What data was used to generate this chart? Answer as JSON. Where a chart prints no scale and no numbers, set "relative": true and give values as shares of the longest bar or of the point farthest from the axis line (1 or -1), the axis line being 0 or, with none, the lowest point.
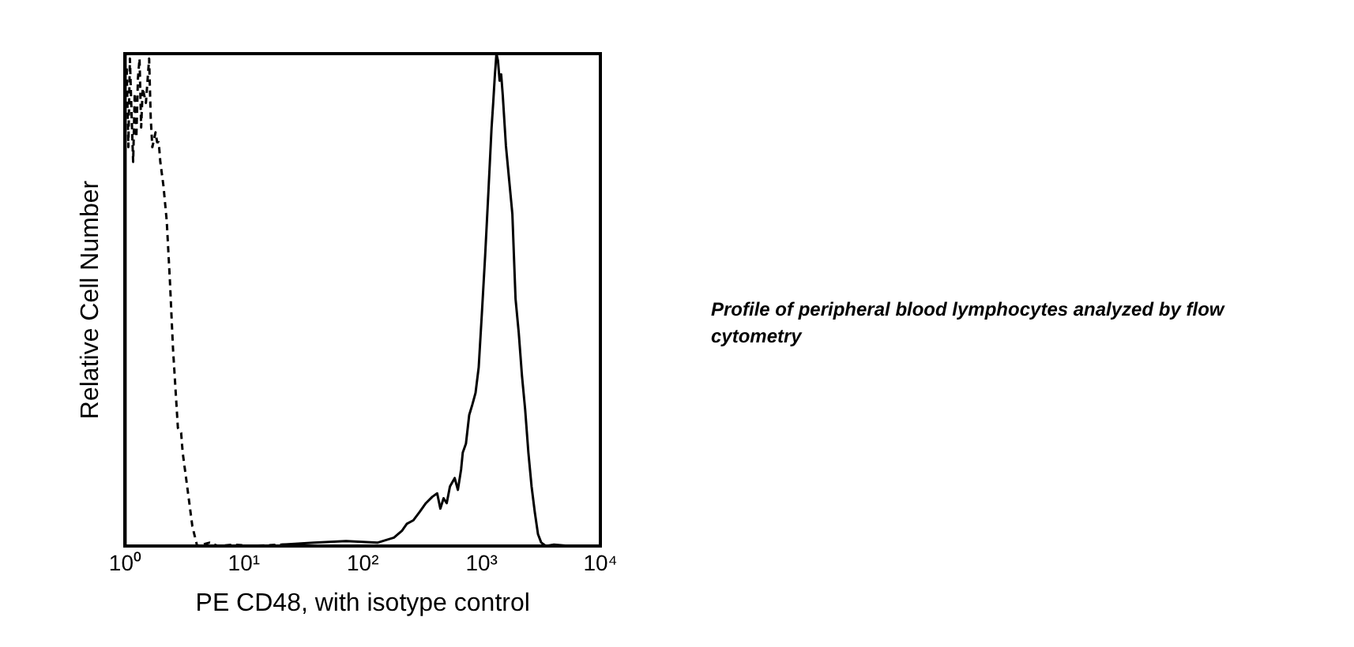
{
  "chart_data": {
    "type": "line",
    "xlabel": "PE CD48, with isotype control",
    "ylabel": "Relative Cell Number",
    "annotations": [
      "Profile of peripheral blood lymphocytes analyzed by flow cytometry"
    ],
    "log": "x",
    "relative": true,
    "grid": false,
    "legend": false,
    "marker": "none",
    "xlim": [
      1,
      10000
    ],
    "xticks": [
      {
        "value": 1,
        "label": "10⁰"
      },
      {
        "value": 10,
        "label": "10¹"
      },
      {
        "value": 100,
        "label": "10²"
      },
      {
        "value": 1000,
        "label": "10³"
      },
      {
        "value": 10000,
        "label": "10⁴"
      }
    ],
    "series": [
      {
        "color": "#000000",
        "line_style": "solid",
        "x": [
          20.9,
          38.8,
          72.3,
          134,
          183,
          214,
          235,
          266,
          301,
          340,
          385,
          423,
          450,
          479,
          509,
          542,
          594,
          632,
          673,
          695,
          739,
          787,
          836,
          890,
          946,
          1007,
          1071,
          1140,
          1213,
          1253,
          1291,
          1334,
          1374,
          1419,
          1462,
          1507,
          1603,
          1706,
          1816,
          1932,
          2056,
          2188,
          2328,
          2477,
          2636,
          2805,
          2985,
          3177,
          3483,
          4064,
          5546,
          10000
        ],
        "values": [
          0.003,
          0.007,
          0.01,
          0.007,
          0.017,
          0.031,
          0.045,
          0.052,
          0.069,
          0.087,
          0.1,
          0.107,
          0.076,
          0.097,
          0.087,
          0.121,
          0.138,
          0.114,
          0.156,
          0.19,
          0.208,
          0.266,
          0.287,
          0.311,
          0.363,
          0.474,
          0.588,
          0.716,
          0.848,
          0.9,
          0.952,
          1,
          0.986,
          0.945,
          0.958,
          0.917,
          0.813,
          0.744,
          0.675,
          0.502,
          0.433,
          0.346,
          0.277,
          0.19,
          0.121,
          0.069,
          0.024,
          0.007,
          0,
          0.003,
          0,
          0
        ]
      },
      {
        "color": "#000000",
        "line_style": "dashed",
        "x": [
          1.031,
          1.064,
          1.097,
          1.132,
          1.168,
          1.205,
          1.243,
          1.282,
          1.322,
          1.364,
          1.406,
          1.496,
          1.592,
          1.642,
          1.694,
          1.802,
          1.859,
          1.918,
          1.978,
          2.105,
          2.24,
          2.38,
          2.53,
          2.7,
          2.78,
          2.96,
          3.05,
          3.25,
          3.46,
          3.68,
          4.04,
          5.17,
          6.04,
          8.23,
          11.2,
          20.9,
          38.9,
          72.3
        ],
        "values": [
          0.97,
          0.81,
          0.99,
          0.88,
          0.78,
          0.92,
          0.83,
          0.95,
          0.99,
          0.85,
          0.93,
          0.9,
          0.99,
          0.87,
          0.81,
          0.84,
          0.82,
          0.82,
          0.78,
          0.73,
          0.66,
          0.54,
          0.4,
          0.29,
          0.24,
          0.23,
          0.19,
          0.14,
          0.09,
          0.04,
          0,
          0.007,
          0,
          0.003,
          0,
          0.003,
          0,
          0
        ]
      }
    ]
  }
}
